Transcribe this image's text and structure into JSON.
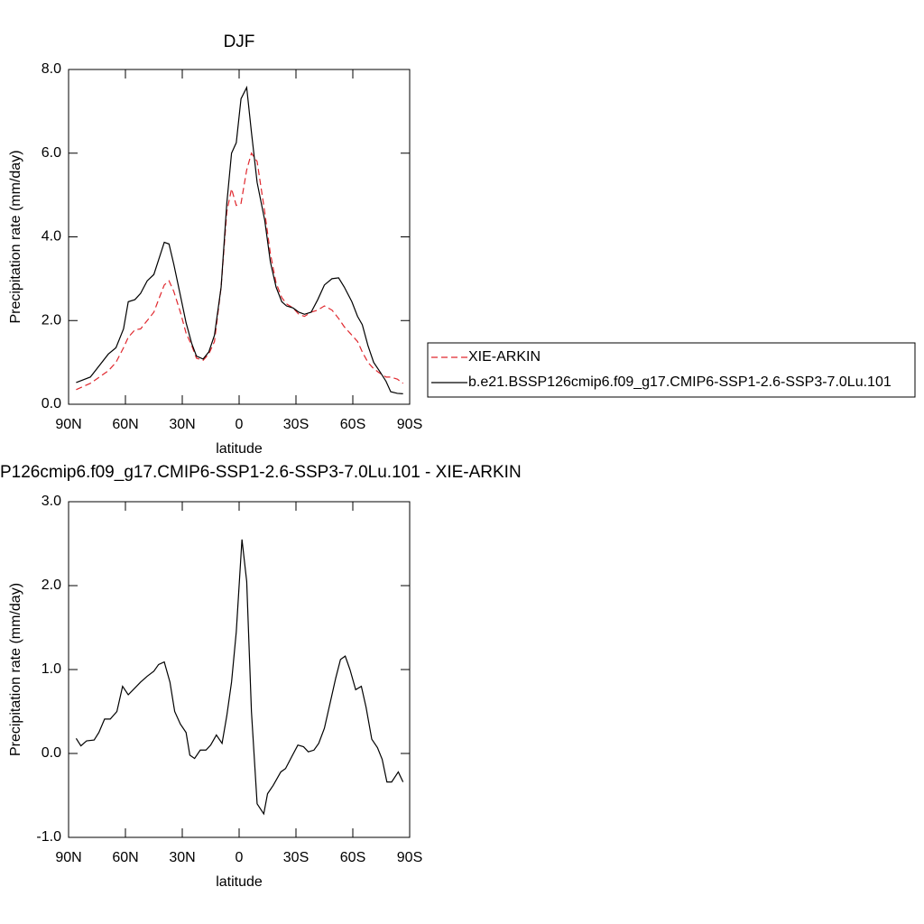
{
  "chart_data": [
    {
      "type": "line",
      "title": "DJF",
      "xlabel": "latitude",
      "ylabel": "Precipitation rate (mm/day)",
      "x": [
        86,
        78.5,
        69,
        65,
        61,
        58.5,
        55,
        52,
        48.5,
        45,
        42.5,
        39.5,
        37,
        34.5,
        31,
        28,
        25,
        22.5,
        19,
        16,
        13,
        9.5,
        6.5,
        4,
        1.5,
        -1,
        -4,
        -6.5,
        -9.5,
        -13.5,
        -16.5,
        -19.5,
        -22.5,
        -25,
        -28.5,
        -31.5,
        -34.5,
        -38,
        -41.5,
        -45,
        -49,
        -52.5,
        -55.5,
        -59.5,
        -62.5,
        -65,
        -68,
        -71,
        -74,
        -77.5,
        -80,
        -83.5,
        -86.5
      ],
      "series": [
        {
          "name": "XIE-ARKIN",
          "color": "#e0282e",
          "dash": true,
          "values": [
            0.35,
            0.5,
            0.8,
            1.0,
            1.35,
            1.6,
            1.78,
            1.8,
            2.0,
            2.2,
            2.5,
            2.85,
            2.95,
            2.7,
            2.2,
            1.7,
            1.4,
            1.1,
            1.05,
            1.2,
            1.5,
            2.8,
            4.6,
            5.15,
            4.75,
            4.8,
            5.6,
            6.0,
            5.8,
            4.6,
            3.6,
            2.9,
            2.55,
            2.4,
            2.3,
            2.15,
            2.1,
            2.2,
            2.25,
            2.35,
            2.25,
            2.05,
            1.85,
            1.65,
            1.5,
            1.25,
            1.0,
            0.85,
            0.75,
            0.65,
            0.65,
            0.6,
            0.5
          ]
        },
        {
          "name": "b.e21.BSSP126cmip6.f09_g17.CMIP6-SSP1-2.6-SSP3-7.0Lu.101",
          "color": "#000000",
          "dash": false,
          "values": [
            0.52,
            0.65,
            1.2,
            1.35,
            1.8,
            2.45,
            2.5,
            2.65,
            2.95,
            3.1,
            3.45,
            3.87,
            3.83,
            3.35,
            2.6,
            1.95,
            1.45,
            1.15,
            1.08,
            1.25,
            1.65,
            2.8,
            4.8,
            6.0,
            6.25,
            7.3,
            7.57,
            6.5,
            5.3,
            4.4,
            3.4,
            2.8,
            2.45,
            2.35,
            2.3,
            2.2,
            2.15,
            2.2,
            2.5,
            2.85,
            3.0,
            3.02,
            2.8,
            2.45,
            2.1,
            1.9,
            1.4,
            1.0,
            0.8,
            0.55,
            0.3,
            0.26,
            0.25
          ]
        }
      ],
      "xlim": [
        90,
        -90
      ],
      "xticks": [
        {
          "value": 90,
          "label": "90N"
        },
        {
          "value": 60,
          "label": "60N"
        },
        {
          "value": 30,
          "label": "30N"
        },
        0,
        {
          "value": -30,
          "label": "30S"
        },
        {
          "value": -60,
          "label": "60S"
        },
        {
          "value": -90,
          "label": "90S"
        }
      ],
      "ylim": [
        0,
        8
      ],
      "yticks": [
        {
          "value": 0,
          "label": "0.0"
        },
        {
          "value": 2,
          "label": "2.0"
        },
        {
          "value": 4,
          "label": "4.0"
        },
        {
          "value": 6,
          "label": "6.0"
        },
        {
          "value": 8,
          "label": "8.0"
        }
      ],
      "legend": "outside-right"
    },
    {
      "type": "line",
      "title": "P126cmip6.f09_g17.CMIP6-SSP1-2.6-SSP3-7.0Lu.101 - XIE-ARKIN",
      "xlabel": "latitude",
      "ylabel": "Precipitation rate (mm/day)",
      "x": [
        86,
        83.5,
        80.5,
        76.5,
        74,
        71,
        68,
        64.5,
        61.5,
        58.5,
        55,
        52,
        48.5,
        45,
        42.5,
        39.5,
        36.5,
        34,
        31,
        28,
        26,
        23.5,
        20.5,
        17.5,
        15,
        12,
        9,
        6.5,
        4,
        1.5,
        -1.5,
        -4,
        -6.5,
        -9.5,
        -13,
        -15,
        -18,
        -22,
        -24.5,
        -27.5,
        -31,
        -34,
        -36.5,
        -39.5,
        -42,
        -45,
        -48,
        -51,
        -53.5,
        -56,
        -58.5,
        -61.5,
        -64.5,
        -67,
        -70,
        -73,
        -75.5,
        -78,
        -80.5,
        -84,
        -86.5
      ],
      "values": [
        0.18,
        0.09,
        0.15,
        0.16,
        0.25,
        0.41,
        0.41,
        0.5,
        0.8,
        0.7,
        0.78,
        0.85,
        0.92,
        0.98,
        1.06,
        1.09,
        0.85,
        0.5,
        0.35,
        0.25,
        -0.02,
        -0.06,
        0.04,
        0.04,
        0.1,
        0.22,
        0.12,
        0.45,
        0.85,
        1.45,
        2.55,
        2.05,
        0.5,
        -0.6,
        -0.72,
        -0.48,
        -0.38,
        -0.22,
        -0.18,
        -0.05,
        0.1,
        0.08,
        0.02,
        0.04,
        0.12,
        0.3,
        0.6,
        0.9,
        1.12,
        1.16,
        1.0,
        0.76,
        0.8,
        0.55,
        0.17,
        0.07,
        -0.07,
        -0.34,
        -0.34,
        -0.22,
        -0.34
      ],
      "color": "#000000",
      "xlim": [
        90,
        -90
      ],
      "xticks": [
        {
          "value": 90,
          "label": "90N"
        },
        {
          "value": 60,
          "label": "60N"
        },
        {
          "value": 30,
          "label": "30N"
        },
        0,
        {
          "value": -30,
          "label": "30S"
        },
        {
          "value": -60,
          "label": "60S"
        },
        {
          "value": -90,
          "label": "90S"
        }
      ],
      "ylim": [
        -1,
        3
      ],
      "yticks": [
        {
          "value": -1,
          "label": "-1.0"
        },
        {
          "value": 0,
          "label": "0.0"
        },
        {
          "value": 1,
          "label": "1.0"
        },
        {
          "value": 2,
          "label": "2.0"
        },
        {
          "value": 3,
          "label": "3.0"
        }
      ]
    }
  ]
}
